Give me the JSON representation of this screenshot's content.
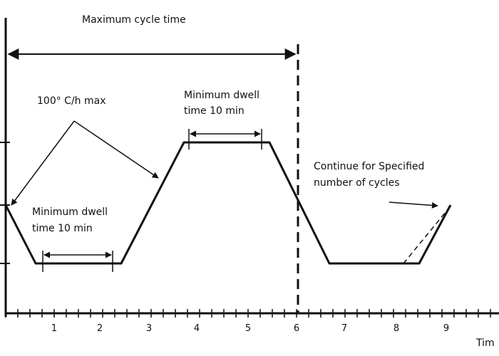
{
  "labels": {
    "max_cycle": "Maximum cycle time",
    "rate": "100° C/h max",
    "dwell_top_1": "Minimum dwell",
    "dwell_top_2": "time 10 min",
    "dwell_low_1": "Minimum dwell",
    "dwell_low_2": "time 10 min",
    "continue_1": "Continue for Specified",
    "continue_2": "number of cycles",
    "x_axis_label": "Tim"
  },
  "x_ticks": [
    "1",
    "2",
    "3",
    "4",
    "5",
    "6",
    "7",
    "8",
    "9"
  ],
  "colors": {
    "line": "#111111",
    "background": "#ffffff"
  }
}
